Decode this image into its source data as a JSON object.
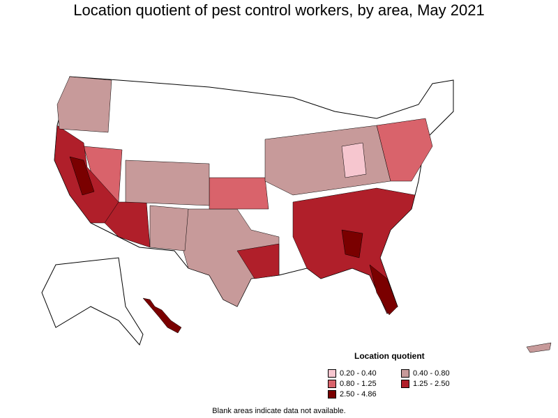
{
  "title": "Location quotient of pest control workers, by area, May 2021",
  "legend": {
    "title": "Location quotient",
    "items": [
      {
        "label": "0.20 - 0.40",
        "color": "#f6c6cf"
      },
      {
        "label": "0.40 - 0.80",
        "color": "#c79a9a"
      },
      {
        "label": "0.80 - 1.25",
        "color": "#d9636b"
      },
      {
        "label": "1.25 - 2.50",
        "color": "#b01f2a"
      },
      {
        "label": "2.50 - 4.86",
        "color": "#7a0000"
      }
    ]
  },
  "note": "Blank areas indicate data not available.",
  "colors": {
    "outline": "#000000",
    "no_data": "#ffffff"
  }
}
